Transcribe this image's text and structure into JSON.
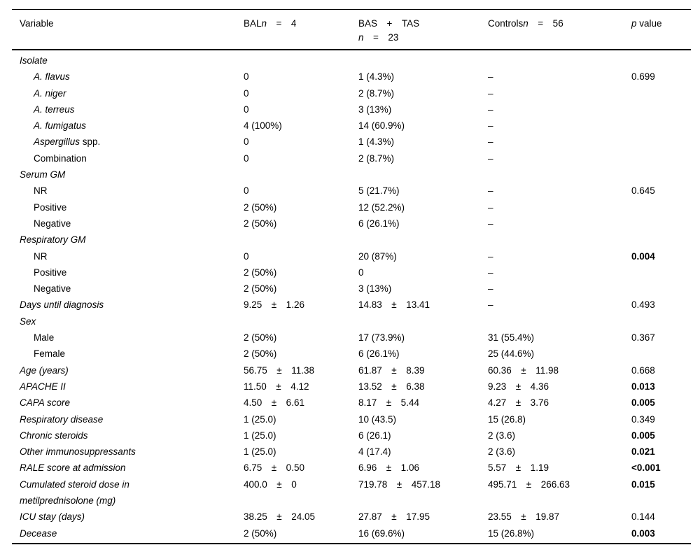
{
  "table": {
    "header": {
      "col1": "Variable",
      "col2": {
        "name": "BAL",
        "n": "n",
        "rest": " = 4"
      },
      "col3": {
        "line1": "BAS + TAS",
        "n": "n",
        "rest": " = 23"
      },
      "col4": {
        "name": "Controls",
        "n": "n",
        "rest": " = 56"
      },
      "col5": {
        "p": "p",
        "rest": " value"
      }
    },
    "rows": [
      {
        "label": "Isolate",
        "suffix": "",
        "italic": true,
        "indent": 0,
        "bal": "",
        "bastas": "",
        "controls": "",
        "p": "",
        "pBold": false
      },
      {
        "label": "A. flavus",
        "suffix": "",
        "italic": true,
        "indent": 1,
        "bal": "0",
        "bastas": "1 (4.3%)",
        "controls": "–",
        "p": "0.699",
        "pBold": false
      },
      {
        "label": "A. niger",
        "suffix": "",
        "italic": true,
        "indent": 1,
        "bal": "0",
        "bastas": "2 (8.7%)",
        "controls": "–",
        "p": "",
        "pBold": false
      },
      {
        "label": "A. terreus",
        "suffix": "",
        "italic": true,
        "indent": 1,
        "bal": "0",
        "bastas": "3 (13%)",
        "controls": "–",
        "p": "",
        "pBold": false
      },
      {
        "label": "A. fumigatus",
        "suffix": "",
        "italic": true,
        "indent": 1,
        "bal": "4 (100%)",
        "bastas": "14 (60.9%)",
        "controls": "–",
        "p": "",
        "pBold": false
      },
      {
        "label": "Aspergillus",
        "suffix": " spp.",
        "italic": true,
        "indent": 1,
        "bal": "0",
        "bastas": "1 (4.3%)",
        "controls": "–",
        "p": "",
        "pBold": false
      },
      {
        "label": "Combination",
        "suffix": "",
        "italic": false,
        "indent": 1,
        "bal": "0",
        "bastas": "2 (8.7%)",
        "controls": "–",
        "p": "",
        "pBold": false
      },
      {
        "label": "Serum GM",
        "suffix": "",
        "italic": true,
        "indent": 0,
        "bal": "",
        "bastas": "",
        "controls": "",
        "p": "",
        "pBold": false
      },
      {
        "label": "NR",
        "suffix": "",
        "italic": false,
        "indent": 1,
        "bal": "0",
        "bastas": "5 (21.7%)",
        "controls": "–",
        "p": "0.645",
        "pBold": false
      },
      {
        "label": "Positive",
        "suffix": "",
        "italic": false,
        "indent": 1,
        "bal": "2 (50%)",
        "bastas": "12 (52.2%)",
        "controls": "–",
        "p": "",
        "pBold": false
      },
      {
        "label": "Negative",
        "suffix": "",
        "italic": false,
        "indent": 1,
        "bal": "2 (50%)",
        "bastas": "6 (26.1%)",
        "controls": "–",
        "p": "",
        "pBold": false
      },
      {
        "label": "Respiratory GM",
        "suffix": "",
        "italic": true,
        "indent": 0,
        "bal": "",
        "bastas": "",
        "controls": "",
        "p": "",
        "pBold": false
      },
      {
        "label": "NR",
        "suffix": "",
        "italic": false,
        "indent": 1,
        "bal": "0",
        "bastas": "20 (87%)",
        "controls": "–",
        "p": "0.004",
        "pBold": true
      },
      {
        "label": "Positive",
        "suffix": "",
        "italic": false,
        "indent": 1,
        "bal": "2 (50%)",
        "bastas": "0",
        "controls": "–",
        "p": "",
        "pBold": false
      },
      {
        "label": "Negative",
        "suffix": "",
        "italic": false,
        "indent": 1,
        "bal": "2 (50%)",
        "bastas": "3 (13%)",
        "controls": "–",
        "p": "",
        "pBold": false
      },
      {
        "label": "Days until diagnosis",
        "suffix": "",
        "italic": true,
        "indent": 0,
        "bal": "9.25 ± 1.26",
        "bastas": "14.83 ± 13.41",
        "controls": "–",
        "p": "0.493",
        "pBold": false
      },
      {
        "label": "Sex",
        "suffix": "",
        "italic": true,
        "indent": 0,
        "bal": "",
        "bastas": "",
        "controls": "",
        "p": "",
        "pBold": false
      },
      {
        "label": "Male",
        "suffix": "",
        "italic": false,
        "indent": 1,
        "bal": "2 (50%)",
        "bastas": "17 (73.9%)",
        "controls": "31 (55.4%)",
        "p": "0.367",
        "pBold": false
      },
      {
        "label": "Female",
        "suffix": "",
        "italic": false,
        "indent": 1,
        "bal": "2 (50%)",
        "bastas": "6 (26.1%)",
        "controls": "25 (44.6%)",
        "p": "",
        "pBold": false
      },
      {
        "label": "Age (years)",
        "suffix": "",
        "italic": true,
        "indent": 0,
        "bal": "56.75 ± 11.38",
        "bastas": "61.87 ± 8.39",
        "controls": "60.36 ± 11.98",
        "p": "0.668",
        "pBold": false
      },
      {
        "label": "APACHE II",
        "suffix": "",
        "italic": true,
        "indent": 0,
        "bal": "11.50 ± 4.12",
        "bastas": "13.52 ± 6.38",
        "controls": "9.23 ± 4.36",
        "p": "0.013",
        "pBold": true
      },
      {
        "label": "CAPA score",
        "suffix": "",
        "italic": true,
        "indent": 0,
        "bal": "4.50 ± 6.61",
        "bastas": "8.17 ± 5.44",
        "controls": "4.27 ± 3.76",
        "p": "0.005",
        "pBold": true
      },
      {
        "label": "Respiratory disease",
        "suffix": "",
        "italic": true,
        "indent": 0,
        "bal": "1 (25.0)",
        "bastas": "10 (43.5)",
        "controls": "15 (26.8)",
        "p": "0.349",
        "pBold": false
      },
      {
        "label": "Chronic steroids",
        "suffix": "",
        "italic": true,
        "indent": 0,
        "bal": "1 (25.0)",
        "bastas": "6 (26.1)",
        "controls": "2 (3.6)",
        "p": "0.005",
        "pBold": true
      },
      {
        "label": "Other immunosuppressants",
        "suffix": "",
        "italic": true,
        "indent": 0,
        "bal": "1 (25.0)",
        "bastas": "4 (17.4)",
        "controls": "2 (3.6)",
        "p": "0.021",
        "pBold": true
      },
      {
        "label": "RALE score at admission",
        "suffix": "",
        "italic": true,
        "indent": 0,
        "bal": "6.75 ± 0.50",
        "bastas": "6.96 ± 1.06",
        "controls": "5.57 ± 1.19",
        "p": "<0.001",
        "pBold": true
      },
      {
        "label": "Cumulated steroid dose in\nmetilprednisolone (mg)",
        "suffix": "",
        "italic": true,
        "indent": 0,
        "bal": "400.0 ± 0",
        "bastas": "719.78 ± 457.18",
        "controls": "495.71 ± 266.63",
        "p": "0.015",
        "pBold": true
      },
      {
        "label": "ICU stay (days)",
        "suffix": "",
        "italic": true,
        "indent": 0,
        "bal": "38.25 ± 24.05",
        "bastas": "27.87 ± 17.95",
        "controls": "23.55 ± 19.87",
        "p": "0.144",
        "pBold": false
      },
      {
        "label": "Decease",
        "suffix": "",
        "italic": true,
        "indent": 0,
        "bal": "2 (50%)",
        "bastas": "16 (69.6%)",
        "controls": "15 (26.8%)",
        "p": "0.003",
        "pBold": true
      }
    ]
  }
}
